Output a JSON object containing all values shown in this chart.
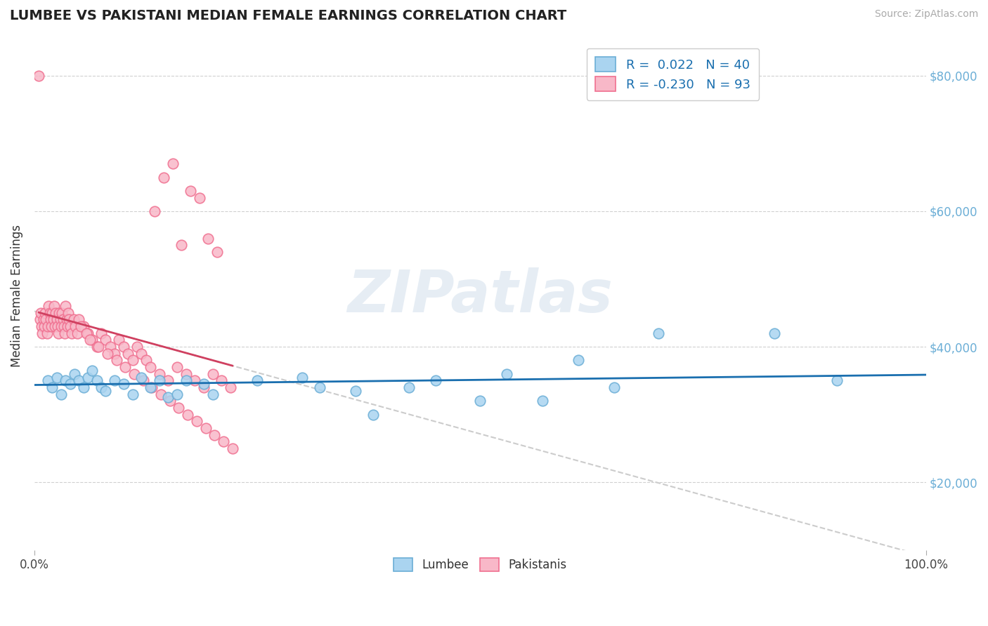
{
  "title": "LUMBEE VS PAKISTANI MEDIAN FEMALE EARNINGS CORRELATION CHART",
  "source": "Source: ZipAtlas.com",
  "ylabel": "Median Female Earnings",
  "xlim": [
    0,
    100
  ],
  "ylim": [
    10000,
    85000
  ],
  "yticks": [
    20000,
    40000,
    60000,
    80000
  ],
  "ytick_labels": [
    "$20,000",
    "$40,000",
    "$60,000",
    "$80,000"
  ],
  "lumbee_R": 0.022,
  "lumbee_N": 40,
  "pakistani_R": -0.23,
  "pakistani_N": 93,
  "lumbee_color": "#6baed6",
  "lumbee_fill": "#aad4f0",
  "pakistani_color": "#f07090",
  "pakistani_fill": "#f8b8c8",
  "trend_lumbee_color": "#1a6faf",
  "trend_pakistani_color": "#d04060",
  "trend_dashed_color": "#cccccc",
  "background_color": "#ffffff",
  "lumbee_x": [
    1.5,
    2.0,
    2.5,
    3.0,
    3.5,
    4.0,
    4.5,
    5.0,
    5.5,
    6.0,
    6.5,
    7.0,
    7.5,
    8.0,
    9.0,
    10.0,
    11.0,
    12.0,
    13.0,
    15.0,
    17.0,
    20.0,
    25.0,
    30.0,
    32.0,
    36.0,
    38.0,
    42.0,
    45.0,
    50.0,
    53.0,
    57.0,
    61.0,
    65.0,
    70.0,
    83.0,
    90.0,
    14.0,
    16.0,
    19.0
  ],
  "lumbee_y": [
    35000,
    34000,
    35500,
    33000,
    35000,
    34500,
    36000,
    35000,
    34000,
    35500,
    36500,
    35000,
    34000,
    33500,
    35000,
    34500,
    33000,
    35500,
    34000,
    32500,
    35000,
    33000,
    35000,
    35500,
    34000,
    33500,
    30000,
    34000,
    35000,
    32000,
    36000,
    32000,
    38000,
    34000,
    42000,
    42000,
    35000,
    35000,
    33000,
    34500
  ],
  "pakistani_x": [
    0.5,
    0.6,
    0.7,
    0.8,
    0.9,
    1.0,
    1.1,
    1.2,
    1.3,
    1.4,
    1.5,
    1.6,
    1.7,
    1.8,
    1.9,
    2.0,
    2.1,
    2.2,
    2.3,
    2.4,
    2.5,
    2.6,
    2.7,
    2.8,
    2.9,
    3.0,
    3.1,
    3.2,
    3.3,
    3.4,
    3.5,
    3.6,
    3.7,
    3.8,
    3.9,
    4.0,
    4.2,
    4.4,
    4.6,
    4.8,
    5.0,
    5.5,
    6.0,
    6.5,
    7.0,
    7.5,
    8.0,
    8.5,
    9.0,
    9.5,
    10.0,
    10.5,
    11.0,
    11.5,
    12.0,
    12.5,
    13.0,
    14.0,
    15.0,
    16.0,
    17.0,
    18.0,
    19.0,
    20.0,
    21.0,
    22.0,
    5.2,
    5.8,
    6.2,
    7.2,
    8.2,
    9.2,
    10.2,
    11.2,
    12.2,
    13.2,
    14.2,
    15.2,
    16.2,
    17.2,
    18.2,
    19.2,
    20.2,
    21.2,
    22.2,
    13.5,
    14.5,
    15.5,
    16.5,
    17.5,
    18.5,
    19.5,
    20.5
  ],
  "pakistani_y": [
    80000,
    44000,
    45000,
    43000,
    42000,
    44000,
    43000,
    45000,
    44000,
    42000,
    43000,
    46000,
    45000,
    44000,
    43000,
    45000,
    44000,
    46000,
    43000,
    45000,
    44000,
    43000,
    42000,
    45000,
    44000,
    43000,
    45000,
    44000,
    43000,
    42000,
    46000,
    44000,
    43000,
    45000,
    44000,
    43000,
    42000,
    44000,
    43000,
    42000,
    44000,
    43000,
    42000,
    41000,
    40000,
    42000,
    41000,
    40000,
    39000,
    41000,
    40000,
    39000,
    38000,
    40000,
    39000,
    38000,
    37000,
    36000,
    35000,
    37000,
    36000,
    35000,
    34000,
    36000,
    35000,
    34000,
    43000,
    42000,
    41000,
    40000,
    39000,
    38000,
    37000,
    36000,
    35000,
    34000,
    33000,
    32000,
    31000,
    30000,
    29000,
    28000,
    27000,
    26000,
    25000,
    60000,
    65000,
    67000,
    55000,
    63000,
    62000,
    56000,
    54000
  ]
}
